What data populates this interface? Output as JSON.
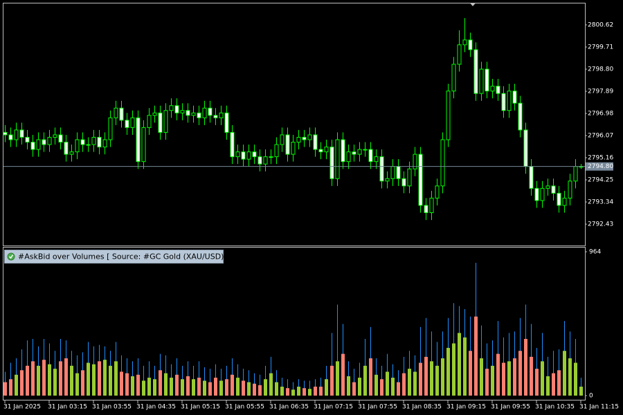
{
  "chart_data": [
    {
      "type": "candlestick",
      "categories": [
        "31 Jan 2025",
        null,
        null,
        null,
        null,
        null,
        null,
        null,
        "31 Jan 03:15",
        null,
        null,
        null,
        null,
        null,
        null,
        null,
        "31 Jan 03:55",
        null,
        null,
        null,
        null,
        null,
        null,
        null,
        "31 Jan 04:35",
        null,
        null,
        null,
        null,
        null,
        null,
        null,
        "31 Jan 05:15",
        null,
        null,
        null,
        null,
        null,
        null,
        null,
        "31 Jan 05:55",
        null,
        null,
        null,
        null,
        null,
        null,
        null,
        "31 Jan 06:35",
        null,
        null,
        null,
        null,
        null,
        null,
        null,
        "31 Jan 07:15",
        null,
        null,
        null,
        null,
        null,
        null,
        null,
        "31 Jan 07:55",
        null,
        null,
        null,
        null,
        null,
        null,
        null,
        "31 Jan 08:35",
        null,
        null,
        null,
        null,
        null,
        null,
        null,
        "31 Jan 09:15",
        null,
        null,
        null,
        null,
        null,
        null,
        null,
        "31 Jan 09:55",
        null,
        null,
        null,
        null,
        null,
        null,
        null,
        "31 Jan 10:35",
        null,
        null,
        null,
        null,
        null,
        null,
        null,
        "31 Jan 11:15"
      ],
      "open": [
        2796.2,
        2796.1,
        2795.9,
        2796.3,
        2796.0,
        2795.8,
        2795.5,
        2795.9,
        2795.7,
        2796.0,
        2796.1,
        2795.8,
        2795.3,
        2795.4,
        2795.9,
        2795.7,
        2795.7,
        2796.0,
        2795.6,
        2795.9,
        2796.8,
        2797.2,
        2796.7,
        2796.4,
        2796.8,
        2795.0,
        2796.4,
        2796.9,
        2797.0,
        2796.2,
        2797.1,
        2797.3,
        2797.0,
        2797.1,
        2796.9,
        2797.0,
        2796.8,
        2797.2,
        2796.9,
        2796.8,
        2797.0,
        2796.2,
        2795.2,
        2795.4,
        2795.1,
        2795.4,
        2795.2,
        2794.9,
        2795.2,
        2795.2,
        2795.7,
        2796.1,
        2795.3,
        2795.8,
        2796.0,
        2795.9,
        2796.1,
        2795.5,
        2795.4,
        2795.6,
        2794.3,
        2795.9,
        2795.0,
        2795.4,
        2795.3,
        2795.5,
        2795.5,
        2795.0,
        2795.2,
        2794.2,
        2794.3,
        2794.8,
        2794.3,
        2794.0,
        2794.7,
        2795.3,
        2793.2,
        2792.9,
        2793.5,
        2794.0,
        2795.9,
        2797.9,
        2799.0,
        2799.8,
        2800.0,
        2799.6,
        2797.8,
        2798.8,
        2797.9,
        2798.1,
        2797.8,
        2797.1,
        2797.9,
        2797.4,
        2796.3,
        2794.8,
        2793.9,
        2793.4,
        2793.9,
        2794.0,
        2793.7,
        2793.2,
        2793.5,
        2794.2,
        2794.8
      ],
      "high": [
        2796.5,
        2796.4,
        2796.6,
        2796.6,
        2796.3,
        2796.1,
        2796.2,
        2796.2,
        2796.3,
        2796.4,
        2796.4,
        2796.1,
        2795.7,
        2796.2,
        2796.2,
        2796.0,
        2796.3,
        2796.3,
        2796.2,
        2797.1,
        2797.5,
        2797.5,
        2797.0,
        2797.1,
        2797.1,
        2796.7,
        2797.2,
        2797.3,
        2797.3,
        2797.4,
        2797.6,
        2797.6,
        2797.4,
        2797.4,
        2797.3,
        2797.3,
        2797.5,
        2797.5,
        2797.2,
        2797.3,
        2797.3,
        2796.5,
        2795.7,
        2795.7,
        2795.7,
        2795.7,
        2795.5,
        2795.5,
        2795.5,
        2796.0,
        2796.4,
        2796.4,
        2796.1,
        2796.3,
        2796.3,
        2796.4,
        2796.4,
        2795.8,
        2795.9,
        2795.9,
        2796.2,
        2796.2,
        2795.7,
        2795.7,
        2795.8,
        2795.8,
        2795.8,
        2795.5,
        2795.5,
        2794.6,
        2795.1,
        2795.1,
        2794.6,
        2795.0,
        2795.6,
        2795.6,
        2793.5,
        2793.8,
        2794.3,
        2796.2,
        2798.2,
        2799.3,
        2800.4,
        2800.9,
        2800.3,
        2799.9,
        2799.1,
        2799.1,
        2798.4,
        2798.4,
        2798.1,
        2798.2,
        2798.2,
        2797.7,
        2796.6,
        2795.1,
        2794.2,
        2794.2,
        2794.3,
        2794.3,
        2794.0,
        2793.8,
        2794.5,
        2795.1,
        2794.9
      ],
      "low": [
        2795.8,
        2795.6,
        2795.6,
        2795.7,
        2795.5,
        2795.2,
        2795.2,
        2795.4,
        2795.4,
        2795.7,
        2795.5,
        2795.0,
        2795.0,
        2795.1,
        2795.4,
        2795.4,
        2795.4,
        2795.3,
        2795.3,
        2795.6,
        2796.5,
        2796.4,
        2796.1,
        2796.1,
        2794.7,
        2794.7,
        2796.1,
        2796.6,
        2795.9,
        2795.9,
        2796.8,
        2796.7,
        2796.7,
        2796.6,
        2796.6,
        2796.5,
        2796.5,
        2796.6,
        2796.5,
        2796.5,
        2795.9,
        2794.9,
        2794.9,
        2794.8,
        2794.8,
        2794.9,
        2794.6,
        2794.6,
        2794.9,
        2794.9,
        2795.4,
        2795.0,
        2795.0,
        2795.5,
        2795.6,
        2795.6,
        2795.2,
        2795.1,
        2795.1,
        2794.0,
        2794.0,
        2794.7,
        2794.7,
        2795.0,
        2795.0,
        2795.2,
        2794.7,
        2794.7,
        2793.9,
        2793.9,
        2794.0,
        2794.0,
        2793.7,
        2793.7,
        2794.4,
        2792.9,
        2792.6,
        2792.6,
        2793.2,
        2793.7,
        2795.6,
        2797.6,
        2798.7,
        2799.5,
        2799.3,
        2797.5,
        2797.5,
        2797.6,
        2797.6,
        2797.5,
        2796.8,
        2796.8,
        2797.1,
        2796.0,
        2794.5,
        2793.6,
        2793.1,
        2793.1,
        2793.6,
        2793.4,
        2792.9,
        2792.9,
        2793.2,
        2793.9,
        2794.7
      ],
      "close": [
        2796.1,
        2795.9,
        2796.3,
        2796.0,
        2795.8,
        2795.5,
        2795.9,
        2795.7,
        2796.0,
        2796.1,
        2795.8,
        2795.3,
        2795.4,
        2795.9,
        2795.7,
        2795.7,
        2796.0,
        2795.6,
        2795.9,
        2796.8,
        2797.2,
        2796.7,
        2796.4,
        2796.8,
        2795.0,
        2796.4,
        2796.9,
        2797.0,
        2796.2,
        2797.1,
        2797.3,
        2797.0,
        2797.1,
        2796.9,
        2797.0,
        2796.8,
        2797.2,
        2796.9,
        2796.8,
        2797.0,
        2796.2,
        2795.2,
        2795.4,
        2795.1,
        2795.4,
        2795.2,
        2794.9,
        2795.2,
        2795.2,
        2795.7,
        2796.1,
        2795.3,
        2795.8,
        2796.0,
        2795.9,
        2796.1,
        2795.5,
        2795.4,
        2795.6,
        2794.3,
        2795.9,
        2795.0,
        2795.4,
        2795.3,
        2795.5,
        2795.5,
        2795.0,
        2795.2,
        2794.2,
        2794.3,
        2794.8,
        2794.3,
        2794.0,
        2794.7,
        2795.3,
        2793.2,
        2792.9,
        2793.5,
        2794.0,
        2795.9,
        2797.9,
        2799.0,
        2799.8,
        2800.0,
        2799.6,
        2797.8,
        2798.8,
        2797.9,
        2798.1,
        2797.8,
        2797.1,
        2797.9,
        2797.4,
        2796.3,
        2794.8,
        2793.9,
        2793.4,
        2793.9,
        2794.0,
        2793.7,
        2793.2,
        2793.5,
        2794.2,
        2794.8,
        2794.8
      ],
      "up_color": "#000000",
      "down_color": "#ffffff",
      "line_color": "#00ff00",
      "ylim": [
        2791.55,
        2801.5
      ],
      "yticks": [
        2800.62,
        2799.71,
        {
          "value": 2798.8,
          "label": "2798.80"
        },
        2797.89,
        2796.98,
        2796.07,
        2795.16,
        2794.25,
        2793.34,
        2792.43
      ],
      "current_price": {
        "value": 2794.8,
        "label": "2794.80"
      }
    },
    {
      "type": "volume",
      "title": "#AskBid over Volumes [ Source: #GC Gold (XAU/USD) ]",
      "series": [
        {
          "color": "#9acd32",
          "down_color": "#fa8072",
          "values": [
            90,
            110,
            140,
            170,
            200,
            230,
            200,
            240,
            210,
            180,
            230,
            250,
            200,
            150,
            170,
            220,
            210,
            230,
            240,
            200,
            230,
            160,
            150,
            130,
            140,
            100,
            120,
            110,
            170,
            150,
            120,
            140,
            110,
            130,
            110,
            120,
            100,
            90,
            120,
            100,
            110,
            140,
            120,
            100,
            90,
            80,
            70,
            110,
            150,
            90,
            60,
            50,
            40,
            60,
            50,
            45,
            60,
            60,
            110,
            200,
            230,
            280,
            130,
            90,
            120,
            200,
            250,
            140,
            110,
            160,
            120,
            90,
            150,
            180,
            160,
            220,
            260,
            230,
            200,
            250,
            320,
            350,
            420,
            390,
            300,
            530,
            250,
            180,
            200,
            280,
            220,
            230,
            250,
            300,
            380,
            260,
            180,
            230,
            130,
            150,
            170,
            300,
            250,
            220,
            60
          ]
        },
        {
          "color": "#1e90ff",
          "values": [
            160,
            220,
            250,
            310,
            370,
            380,
            330,
            380,
            350,
            300,
            380,
            370,
            300,
            270,
            290,
            360,
            330,
            340,
            330,
            300,
            360,
            270,
            250,
            230,
            250,
            200,
            230,
            200,
            280,
            270,
            210,
            250,
            200,
            230,
            200,
            230,
            190,
            180,
            210,
            180,
            200,
            250,
            210,
            180,
            170,
            150,
            140,
            200,
            260,
            170,
            120,
            110,
            90,
            110,
            100,
            100,
            110,
            120,
            200,
            420,
            610,
            480,
            230,
            180,
            220,
            380,
            460,
            250,
            200,
            280,
            210,
            170,
            260,
            300,
            270,
            460,
            520,
            430,
            360,
            430,
            520,
            620,
            600,
            580,
            530,
            890,
            470,
            350,
            370,
            500,
            390,
            420,
            430,
            520,
            610,
            480,
            320,
            420,
            260,
            300,
            310,
            500,
            430,
            380,
            120
          ]
        }
      ],
      "ylim": [
        -28,
        992
      ],
      "yticks": [
        964,
        0
      ]
    }
  ]
}
